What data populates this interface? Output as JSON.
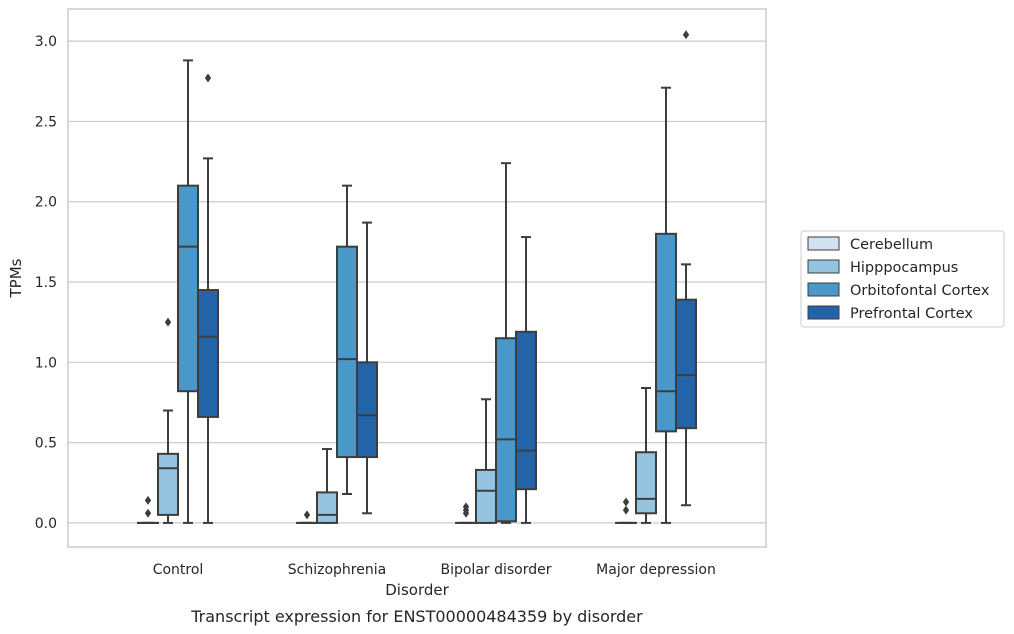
{
  "caption": "Transcript expression for ENST00000484359 by disorder",
  "chart_data": {
    "type": "box",
    "xlabel": "Disorder",
    "ylabel": "TPMs",
    "ylim": [
      -0.15,
      3.2
    ],
    "yticks": [
      0.0,
      0.5,
      1.0,
      1.5,
      2.0,
      2.5,
      3.0
    ],
    "ytick_labels": [
      "0.0",
      "0.5",
      "1.0",
      "1.5",
      "2.0",
      "2.5",
      "3.0"
    ],
    "categories": [
      "Control",
      "Schizophrenia",
      "Bipolar disorder",
      "Major depression"
    ],
    "grid": "horizontal",
    "legend_position": "right",
    "series": [
      {
        "name": "Cerebellum",
        "color": "#d0e1f2",
        "boxes": [
          {
            "whislo": 0,
            "q1": 0,
            "med": 0,
            "q3": 0,
            "whishi": 0,
            "fliers": [
              0.06,
              0.14
            ]
          },
          {
            "whislo": 0,
            "q1": 0,
            "med": 0,
            "q3": 0,
            "whishi": 0,
            "fliers": [
              0.05
            ]
          },
          {
            "whislo": 0,
            "q1": 0,
            "med": 0,
            "q3": 0,
            "whishi": 0,
            "fliers": [
              0.06,
              0.08,
              0.1
            ]
          },
          {
            "whislo": 0,
            "q1": 0,
            "med": 0,
            "q3": 0,
            "whishi": 0,
            "fliers": [
              0.08,
              0.13
            ]
          }
        ]
      },
      {
        "name": "Hipppocampus",
        "color": "#94c4df",
        "boxes": [
          {
            "whislo": 0,
            "q1": 0.05,
            "med": 0.34,
            "q3": 0.43,
            "whishi": 0.7,
            "fliers": [
              1.25
            ]
          },
          {
            "whislo": 0,
            "q1": 0,
            "med": 0.05,
            "q3": 0.19,
            "whishi": 0.46,
            "fliers": []
          },
          {
            "whislo": 0,
            "q1": 0,
            "med": 0.2,
            "q3": 0.33,
            "whishi": 0.77,
            "fliers": []
          },
          {
            "whislo": 0,
            "q1": 0.06,
            "med": 0.15,
            "q3": 0.44,
            "whishi": 0.84,
            "fliers": []
          }
        ]
      },
      {
        "name": "Orbitofontal Cortex",
        "color": "#4a98c9",
        "boxes": [
          {
            "whislo": 0,
            "q1": 0.82,
            "med": 1.72,
            "q3": 2.1,
            "whishi": 2.88,
            "fliers": []
          },
          {
            "whislo": 0.18,
            "q1": 0.41,
            "med": 1.02,
            "q3": 1.72,
            "whishi": 2.1,
            "fliers": []
          },
          {
            "whislo": 0,
            "q1": 0.01,
            "med": 0.52,
            "q3": 1.15,
            "whishi": 2.24,
            "fliers": []
          },
          {
            "whislo": 0,
            "q1": 0.57,
            "med": 0.82,
            "q3": 1.8,
            "whishi": 2.71,
            "fliers": []
          }
        ]
      },
      {
        "name": "Prefrontal Cortex",
        "color": "#2364a9",
        "boxes": [
          {
            "whislo": 0,
            "q1": 0.66,
            "med": 1.16,
            "q3": 1.45,
            "whishi": 2.27,
            "fliers": [
              2.77
            ]
          },
          {
            "whislo": 0.06,
            "q1": 0.41,
            "med": 0.67,
            "q3": 1.0,
            "whishi": 1.87,
            "fliers": []
          },
          {
            "whislo": 0,
            "q1": 0.21,
            "med": 0.45,
            "q3": 1.19,
            "whishi": 1.78,
            "fliers": []
          },
          {
            "whislo": 0.11,
            "q1": 0.59,
            "med": 0.92,
            "q3": 1.39,
            "whishi": 1.61,
            "fliers": [
              3.04
            ]
          }
        ]
      }
    ]
  }
}
